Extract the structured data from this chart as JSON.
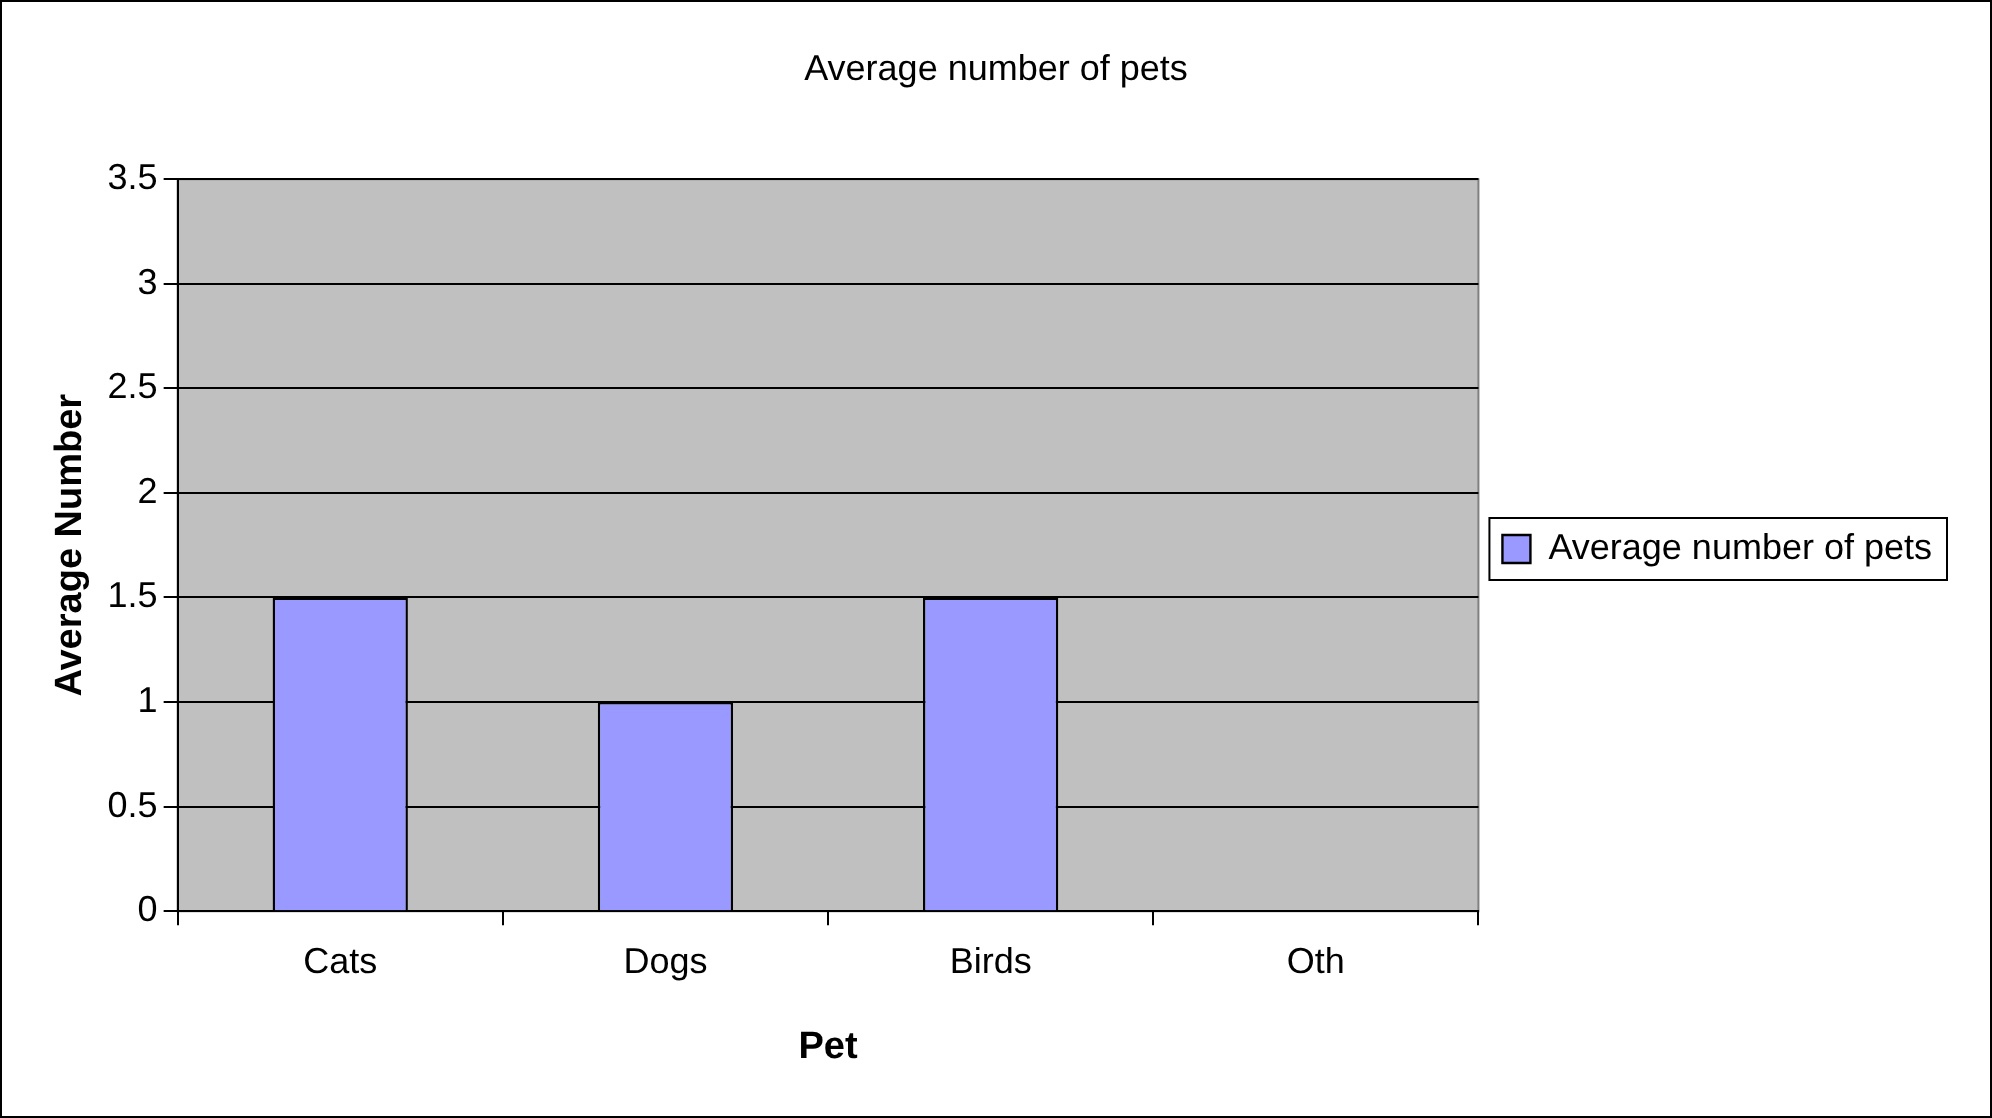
{
  "chart_data": {
    "type": "bar",
    "title": "Average number of pets",
    "xlabel": "Pet",
    "ylabel": "Average Number",
    "categories": [
      "Cats",
      "Dogs",
      "Birds",
      "Oth"
    ],
    "series": [
      {
        "name": "Average number of pets",
        "color": "#9999ff",
        "values": [
          1.5,
          1,
          1.5,
          null
        ]
      }
    ],
    "ylim": [
      0,
      3.5
    ],
    "yticks": [
      0,
      0.5,
      1,
      1.5,
      2,
      2.5,
      3,
      3.5
    ],
    "grid": "y",
    "legend": "right"
  }
}
